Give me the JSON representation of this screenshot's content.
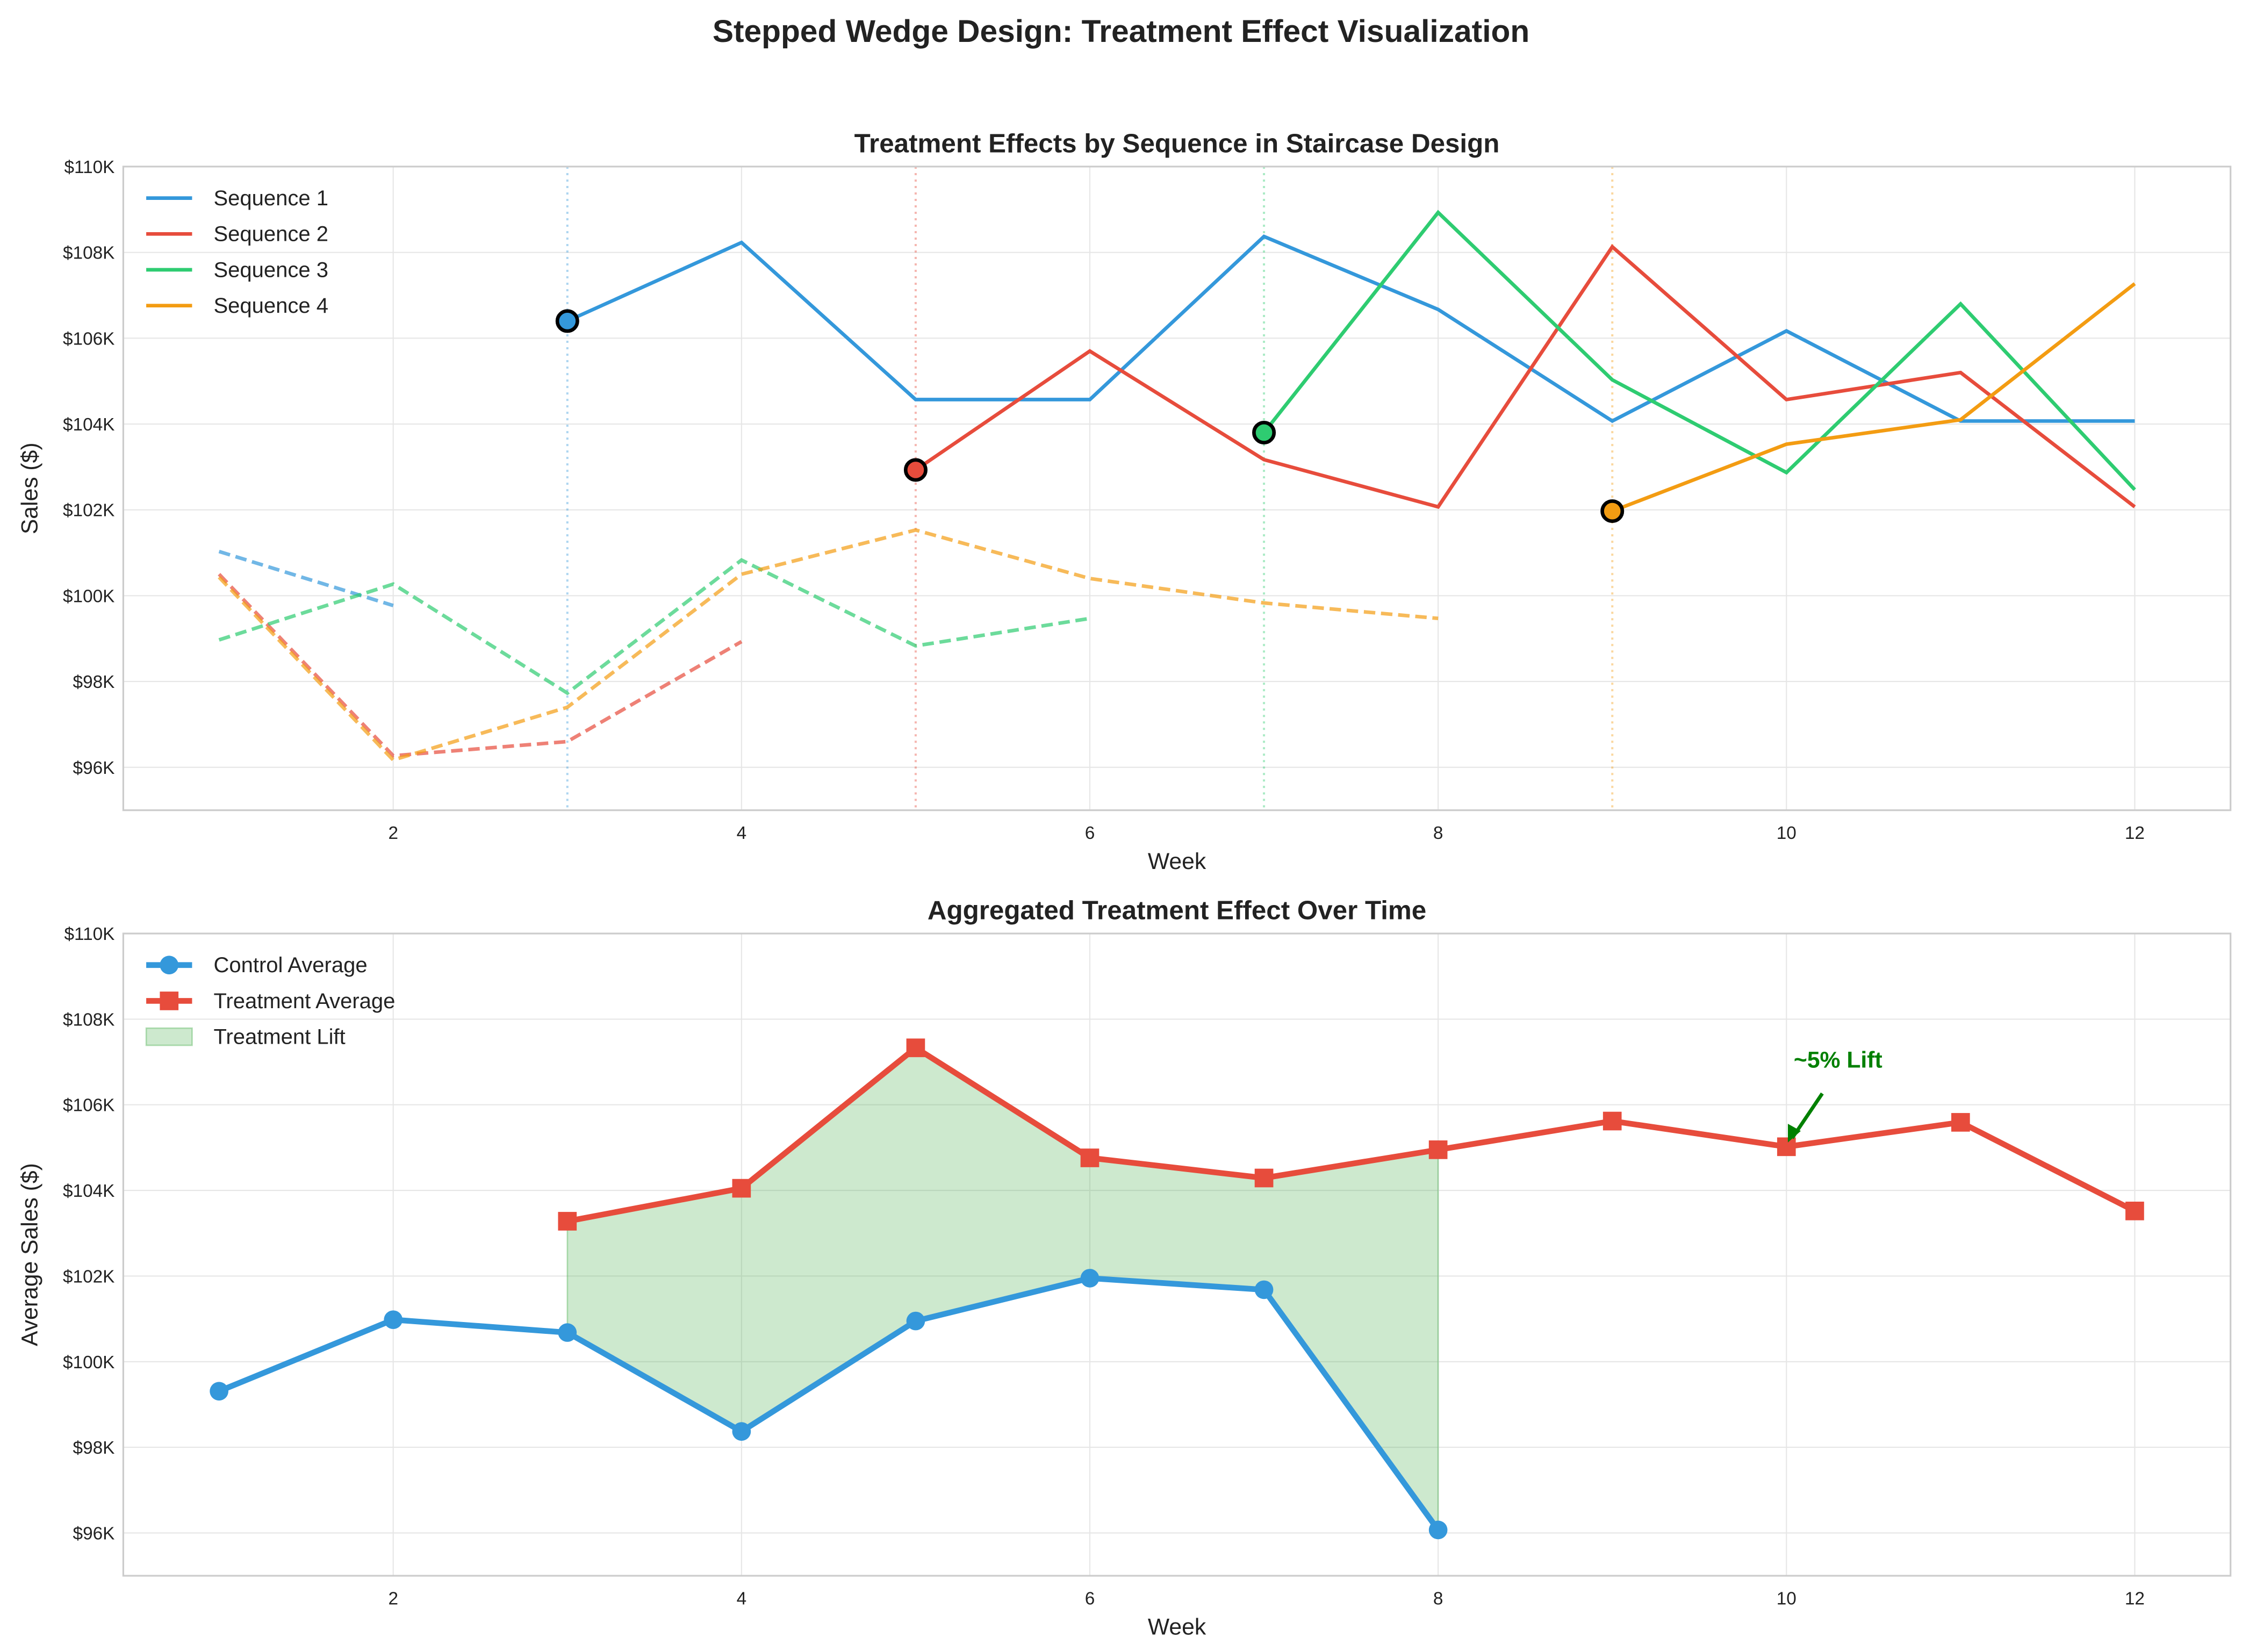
{
  "title": "Stepped Wedge Design: Treatment Effect Visualization",
  "chart_data": [
    {
      "type": "line",
      "title": "Treatment Effects by Sequence in Staircase Design",
      "xlabel": "Week",
      "ylabel": "Sales ($)",
      "xlim": [
        0.45,
        12.55
      ],
      "ylim": [
        95000,
        110000
      ],
      "xticks": [
        2,
        4,
        6,
        8,
        10,
        12
      ],
      "xtick_labels": [
        "2",
        "4",
        "6",
        "8",
        "10",
        "12"
      ],
      "yticks": [
        96000,
        98000,
        100000,
        102000,
        104000,
        106000,
        108000,
        110000
      ],
      "ytick_labels": [
        "$96K",
        "$98K",
        "$100K",
        "$102K",
        "$104K",
        "$106K",
        "$108K",
        "$110K"
      ],
      "grid": true,
      "legend_placement": "top-left",
      "series": [
        {
          "name": "Sequence 1",
          "color": "#3498db",
          "start_week": 3,
          "control": {
            "x": [
              1,
              2
            ],
            "y": [
              101030,
              99770
            ]
          },
          "treatment": {
            "x": [
              3,
              4,
              5,
              6,
              7,
              8,
              9,
              10,
              11,
              12
            ],
            "y": [
              106400,
              108230,
              104570,
              104570,
              108370,
              106670,
              104070,
              106170,
              104070,
              104070
            ]
          }
        },
        {
          "name": "Sequence 2",
          "color": "#e74c3c",
          "start_week": 5,
          "control": {
            "x": [
              1,
              2,
              3,
              4
            ],
            "y": [
              100500,
              96270,
              96600,
              98930
            ]
          },
          "treatment": {
            "x": [
              5,
              6,
              7,
              8,
              9,
              10,
              11,
              12
            ],
            "y": [
              102930,
              105700,
              103170,
              102070,
              108130,
              104570,
              105200,
              102070
            ]
          }
        },
        {
          "name": "Sequence 3",
          "color": "#2ecc71",
          "start_week": 7,
          "control": {
            "x": [
              1,
              2,
              3,
              4,
              5,
              6
            ],
            "y": [
              98970,
              100270,
              97730,
              100830,
              98830,
              99470
            ]
          },
          "treatment": {
            "x": [
              7,
              8,
              9,
              10,
              11,
              12
            ],
            "y": [
              103800,
              108930,
              105030,
              102870,
              106800,
              102470
            ]
          }
        },
        {
          "name": "Sequence 4",
          "color": "#f39c12",
          "start_week": 9,
          "control": {
            "x": [
              1,
              2,
              3,
              4,
              5,
              6,
              7,
              8
            ],
            "y": [
              100430,
              96170,
              97400,
              100500,
              101530,
              100400,
              99830,
              99470
            ]
          },
          "treatment": {
            "x": [
              9,
              10,
              11,
              12
            ],
            "y": [
              101970,
              103530,
              104100,
              107270
            ]
          }
        }
      ]
    },
    {
      "type": "line",
      "title": "Aggregated Treatment Effect Over Time",
      "xlabel": "Week",
      "ylabel": "Average Sales ($)",
      "xlim": [
        0.45,
        12.55
      ],
      "ylim": [
        95000,
        110000
      ],
      "xticks": [
        2,
        4,
        6,
        8,
        10,
        12
      ],
      "xtick_labels": [
        "2",
        "4",
        "6",
        "8",
        "10",
        "12"
      ],
      "yticks": [
        96000,
        98000,
        100000,
        102000,
        104000,
        106000,
        108000,
        110000
      ],
      "ytick_labels": [
        "$96K",
        "$98K",
        "$100K",
        "$102K",
        "$104K",
        "$106K",
        "$108K",
        "$110K"
      ],
      "grid": true,
      "legend_placement": "top-left",
      "series": [
        {
          "name": "Control Average",
          "color": "#3498db",
          "marker": "circle",
          "x": [
            1,
            2,
            3,
            4,
            5,
            6,
            7,
            8
          ],
          "y": [
            99310,
            100980,
            100680,
            98370,
            100950,
            101950,
            101680,
            96070
          ]
        },
        {
          "name": "Treatment Average",
          "color": "#e74c3c",
          "marker": "square",
          "x": [
            3,
            4,
            5,
            6,
            7,
            8,
            9,
            10,
            11,
            12
          ],
          "y": [
            103280,
            104050,
            107330,
            104760,
            104290,
            104950,
            105620,
            105020,
            105590,
            103520
          ]
        }
      ],
      "fill": {
        "name": "Treatment Lift",
        "color": "#4caf50",
        "x": [
          3,
          4,
          5,
          6,
          7,
          8
        ]
      },
      "annotation": {
        "text": "~5% Lift",
        "color": "#008000",
        "x": 10,
        "y": 105020,
        "text_x": 10.5,
        "text_y": 107000
      }
    }
  ]
}
